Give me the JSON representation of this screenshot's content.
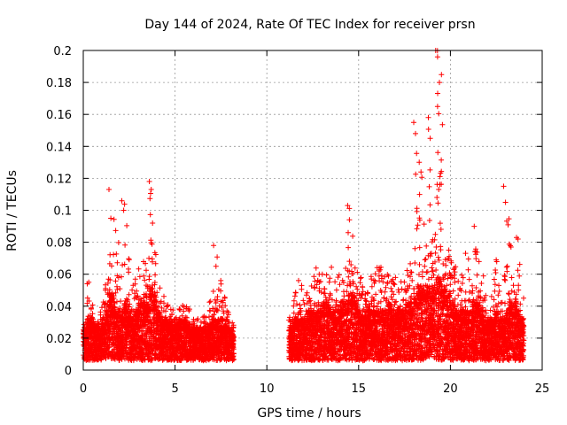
{
  "chart_data": {
    "type": "scatter",
    "title": "Day 144 of 2024, Rate Of TEC Index for receiver prsn",
    "xlabel": "GPS time / hours",
    "ylabel": "ROTI / TECUs",
    "xlim": [
      0,
      25
    ],
    "ylim": [
      0,
      0.2
    ],
    "xticks": [
      0,
      5,
      10,
      15,
      20,
      25
    ],
    "yticks": [
      0,
      0.02,
      0.04,
      0.06,
      0.08,
      0.1,
      0.12,
      0.14,
      0.16,
      0.18,
      0.2
    ],
    "grid": true,
    "marker": "+",
    "color": "#ff0000",
    "data_gap_hours": [
      8.0,
      11.2
    ],
    "notable_points": [
      {
        "x": 0.3,
        "y": 0.055
      },
      {
        "x": 1.4,
        "y": 0.113
      },
      {
        "x": 1.5,
        "y": 0.095
      },
      {
        "x": 2.1,
        "y": 0.106
      },
      {
        "x": 2.2,
        "y": 0.1
      },
      {
        "x": 3.6,
        "y": 0.118
      },
      {
        "x": 3.7,
        "y": 0.113
      },
      {
        "x": 7.1,
        "y": 0.078
      },
      {
        "x": 14.4,
        "y": 0.103
      },
      {
        "x": 14.5,
        "y": 0.094
      },
      {
        "x": 18.0,
        "y": 0.155
      },
      {
        "x": 18.1,
        "y": 0.148
      },
      {
        "x": 18.3,
        "y": 0.13
      },
      {
        "x": 18.4,
        "y": 0.124
      },
      {
        "x": 18.8,
        "y": 0.158
      },
      {
        "x": 18.9,
        "y": 0.145
      },
      {
        "x": 19.2,
        "y": 0.2
      },
      {
        "x": 19.3,
        "y": 0.196
      },
      {
        "x": 19.4,
        "y": 0.18
      },
      {
        "x": 19.3,
        "y": 0.165
      },
      {
        "x": 21.3,
        "y": 0.09
      },
      {
        "x": 22.9,
        "y": 0.115
      },
      {
        "x": 23.0,
        "y": 0.105
      },
      {
        "x": 23.6,
        "y": 0.083
      }
    ],
    "series": [
      {
        "name": "ROTI",
        "hours": [
          0.0,
          0.2,
          0.4,
          0.6,
          0.8,
          1.0,
          1.2,
          1.4,
          1.6,
          1.8,
          2.0,
          2.2,
          2.4,
          2.6,
          2.8,
          3.0,
          3.2,
          3.4,
          3.6,
          3.8,
          4.0,
          4.2,
          4.4,
          4.6,
          4.8,
          5.0,
          5.2,
          5.4,
          5.6,
          5.8,
          6.0,
          6.2,
          6.4,
          6.6,
          6.8,
          7.0,
          7.2,
          7.4,
          7.6,
          7.8,
          8.0,
          11.2,
          11.4,
          11.6,
          11.8,
          12.0,
          12.2,
          12.4,
          12.6,
          12.8,
          13.0,
          13.2,
          13.4,
          13.6,
          13.8,
          14.0,
          14.2,
          14.4,
          14.6,
          14.8,
          15.0,
          15.2,
          15.4,
          15.6,
          15.8,
          16.0,
          16.2,
          16.4,
          16.6,
          16.8,
          17.0,
          17.2,
          17.4,
          17.6,
          17.8,
          18.0,
          18.2,
          18.4,
          18.6,
          18.8,
          19.0,
          19.2,
          19.4,
          19.6,
          19.8,
          20.0,
          20.2,
          20.4,
          20.6,
          20.8,
          21.0,
          21.2,
          21.4,
          21.6,
          21.8,
          22.0,
          22.2,
          22.4,
          22.6,
          22.8,
          23.0,
          23.2,
          23.4,
          23.6,
          23.8,
          24.0
        ],
        "typical_roti": [
          0.02,
          0.025,
          0.025,
          0.022,
          0.02,
          0.025,
          0.03,
          0.04,
          0.035,
          0.03,
          0.03,
          0.035,
          0.03,
          0.025,
          0.03,
          0.035,
          0.035,
          0.035,
          0.045,
          0.04,
          0.03,
          0.025,
          0.025,
          0.025,
          0.022,
          0.022,
          0.025,
          0.025,
          0.022,
          0.02,
          0.02,
          0.02,
          0.02,
          0.02,
          0.022,
          0.025,
          0.025,
          0.025,
          0.022,
          0.02,
          0.02,
          0.02,
          0.025,
          0.025,
          0.025,
          0.025,
          0.03,
          0.03,
          0.03,
          0.03,
          0.035,
          0.035,
          0.03,
          0.03,
          0.03,
          0.035,
          0.035,
          0.04,
          0.04,
          0.035,
          0.03,
          0.03,
          0.03,
          0.03,
          0.03,
          0.03,
          0.03,
          0.03,
          0.035,
          0.03,
          0.03,
          0.03,
          0.03,
          0.035,
          0.035,
          0.04,
          0.045,
          0.045,
          0.045,
          0.045,
          0.045,
          0.05,
          0.05,
          0.045,
          0.04,
          0.035,
          0.03,
          0.03,
          0.03,
          0.03,
          0.03,
          0.035,
          0.035,
          0.03,
          0.025,
          0.025,
          0.025,
          0.03,
          0.025,
          0.025,
          0.03,
          0.035,
          0.035,
          0.03,
          0.025,
          0.025
        ],
        "roti_max": [
          0.03,
          0.055,
          0.042,
          0.035,
          0.04,
          0.045,
          0.065,
          0.113,
          0.095,
          0.08,
          0.07,
          0.106,
          0.07,
          0.055,
          0.06,
          0.065,
          0.07,
          0.07,
          0.118,
          0.075,
          0.055,
          0.05,
          0.045,
          0.045,
          0.04,
          0.04,
          0.045,
          0.045,
          0.04,
          0.035,
          0.035,
          0.035,
          0.035,
          0.04,
          0.048,
          0.055,
          0.078,
          0.06,
          0.05,
          0.04,
          0.03,
          0.035,
          0.05,
          0.06,
          0.055,
          0.05,
          0.055,
          0.06,
          0.065,
          0.06,
          0.06,
          0.065,
          0.065,
          0.065,
          0.06,
          0.06,
          0.065,
          0.103,
          0.09,
          0.07,
          0.065,
          0.06,
          0.06,
          0.06,
          0.065,
          0.065,
          0.065,
          0.06,
          0.07,
          0.065,
          0.06,
          0.06,
          0.06,
          0.065,
          0.07,
          0.155,
          0.13,
          0.124,
          0.09,
          0.158,
          0.1,
          0.2,
          0.196,
          0.085,
          0.08,
          0.07,
          0.065,
          0.06,
          0.06,
          0.075,
          0.07,
          0.09,
          0.085,
          0.06,
          0.05,
          0.05,
          0.06,
          0.07,
          0.065,
          0.06,
          0.115,
          0.08,
          0.06,
          0.083,
          0.06,
          0.045
        ]
      }
    ]
  }
}
